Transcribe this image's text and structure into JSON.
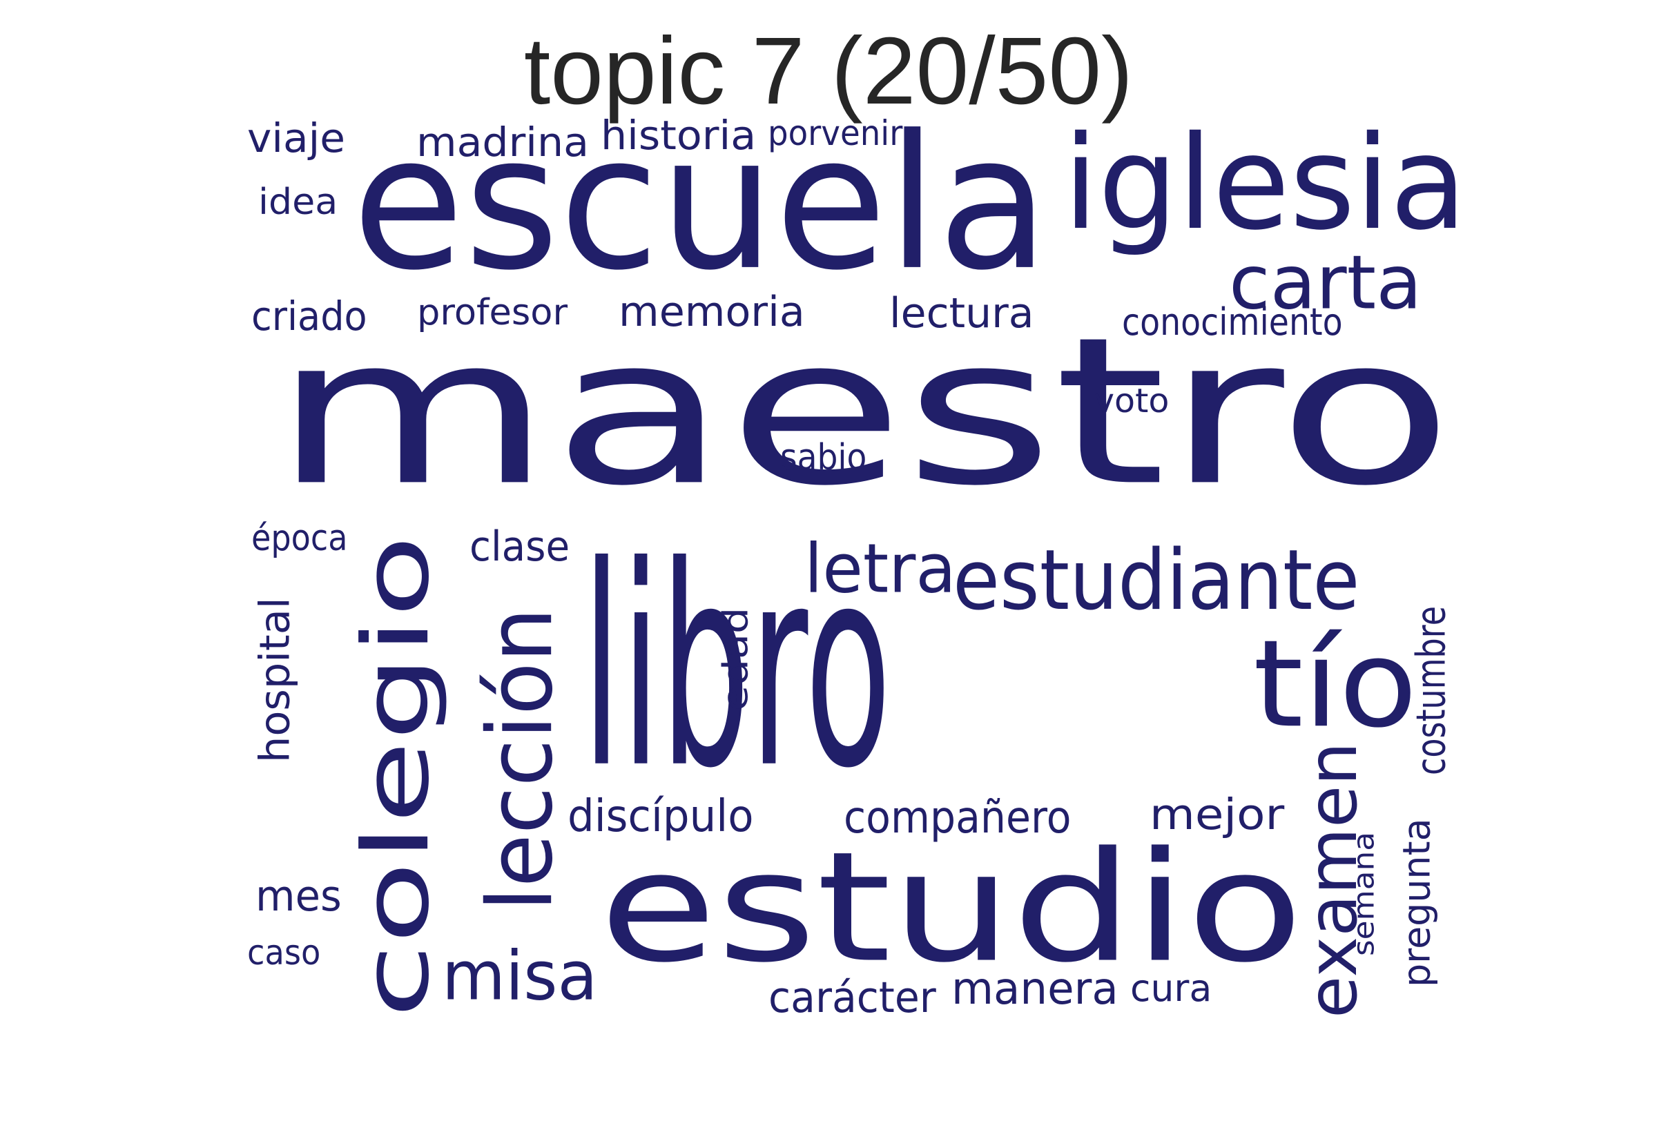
{
  "title": "topic 7 (20/50)",
  "color": "#211f69",
  "words": [
    "maestro",
    "libro",
    "escuela",
    "estudio",
    "iglesia",
    "colegio",
    "lección",
    "estudiante",
    "tío",
    "carta",
    "examen",
    "misa",
    "letra",
    "viaje",
    "madrina",
    "historia",
    "porvenir",
    "idea",
    "criado",
    "profesor",
    "memoria",
    "lectura",
    "conocimiento",
    "voto",
    "sabio",
    "época",
    "clase",
    "hospital",
    "edad",
    "costumbre",
    "discípulo",
    "compañero",
    "mejor",
    "semana",
    "pregunta",
    "mes",
    "caso",
    "carácter",
    "manera",
    "cura"
  ]
}
